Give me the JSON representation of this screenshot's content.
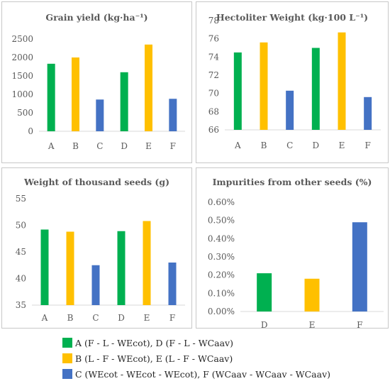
{
  "colors": {
    "green": "#00b050",
    "yellow": "#ffc000",
    "blue": "#4472c4",
    "text": "#595959",
    "axis": "#d9d9d9"
  },
  "legend": [
    {
      "color": "#00b050",
      "label": "A (F - L - WEcot), D (F - L - WCaav)"
    },
    {
      "color": "#ffc000",
      "label": "B (L - F - WEcot), E (L - F - WCaav)"
    },
    {
      "color": "#4472c4",
      "label": "C (WEcot - WEcot - WEcot), F (WCaav - WCaav - WCaav)"
    }
  ],
  "chart_data": [
    {
      "type": "bar",
      "title": "Grain yield (kg·ha⁻¹)",
      "categories": [
        "A",
        "B",
        "C",
        "D",
        "E",
        "F"
      ],
      "values": [
        1830,
        2000,
        860,
        1600,
        2350,
        880
      ],
      "bar_colors": [
        "#00b050",
        "#ffc000",
        "#4472c4",
        "#00b050",
        "#ffc000",
        "#4472c4"
      ],
      "ylim": [
        0,
        2500
      ],
      "yticks": [
        "0",
        "500",
        "1000",
        "1500",
        "2000",
        "2500"
      ],
      "grid": false
    },
    {
      "type": "bar",
      "title": "Hectoliter Weight (kg·100 L⁻¹)",
      "categories": [
        "A",
        "B",
        "C",
        "D",
        "E",
        "F"
      ],
      "values": [
        74.5,
        75.6,
        70.3,
        75.0,
        76.7,
        69.6
      ],
      "bar_colors": [
        "#00b050",
        "#ffc000",
        "#4472c4",
        "#00b050",
        "#ffc000",
        "#4472c4"
      ],
      "ylim": [
        66,
        78
      ],
      "yticks": [
        "66",
        "68",
        "70",
        "72",
        "74",
        "76",
        "78"
      ],
      "grid": false
    },
    {
      "type": "bar",
      "title": "Weight of thousand seeds (g)",
      "categories": [
        "A",
        "B",
        "C",
        "D",
        "E",
        "F"
      ],
      "values": [
        49.2,
        48.8,
        42.5,
        48.9,
        50.8,
        43.0
      ],
      "bar_colors": [
        "#00b050",
        "#ffc000",
        "#4472c4",
        "#00b050",
        "#ffc000",
        "#4472c4"
      ],
      "ylim": [
        35,
        55
      ],
      "yticks": [
        "35",
        "40",
        "45",
        "50",
        "55"
      ],
      "grid": false
    },
    {
      "type": "bar",
      "title": "Impurities from other seeds (%)",
      "categories": [
        "D",
        "E",
        "F"
      ],
      "values": [
        0.0021,
        0.0018,
        0.0049
      ],
      "bar_colors": [
        "#00b050",
        "#ffc000",
        "#4472c4"
      ],
      "ylim": [
        0,
        0.006
      ],
      "yticks": [
        "0.00%",
        "0.10%",
        "0.20%",
        "0.30%",
        "0.40%",
        "0.50%",
        "0.60%"
      ],
      "grid": false
    }
  ]
}
